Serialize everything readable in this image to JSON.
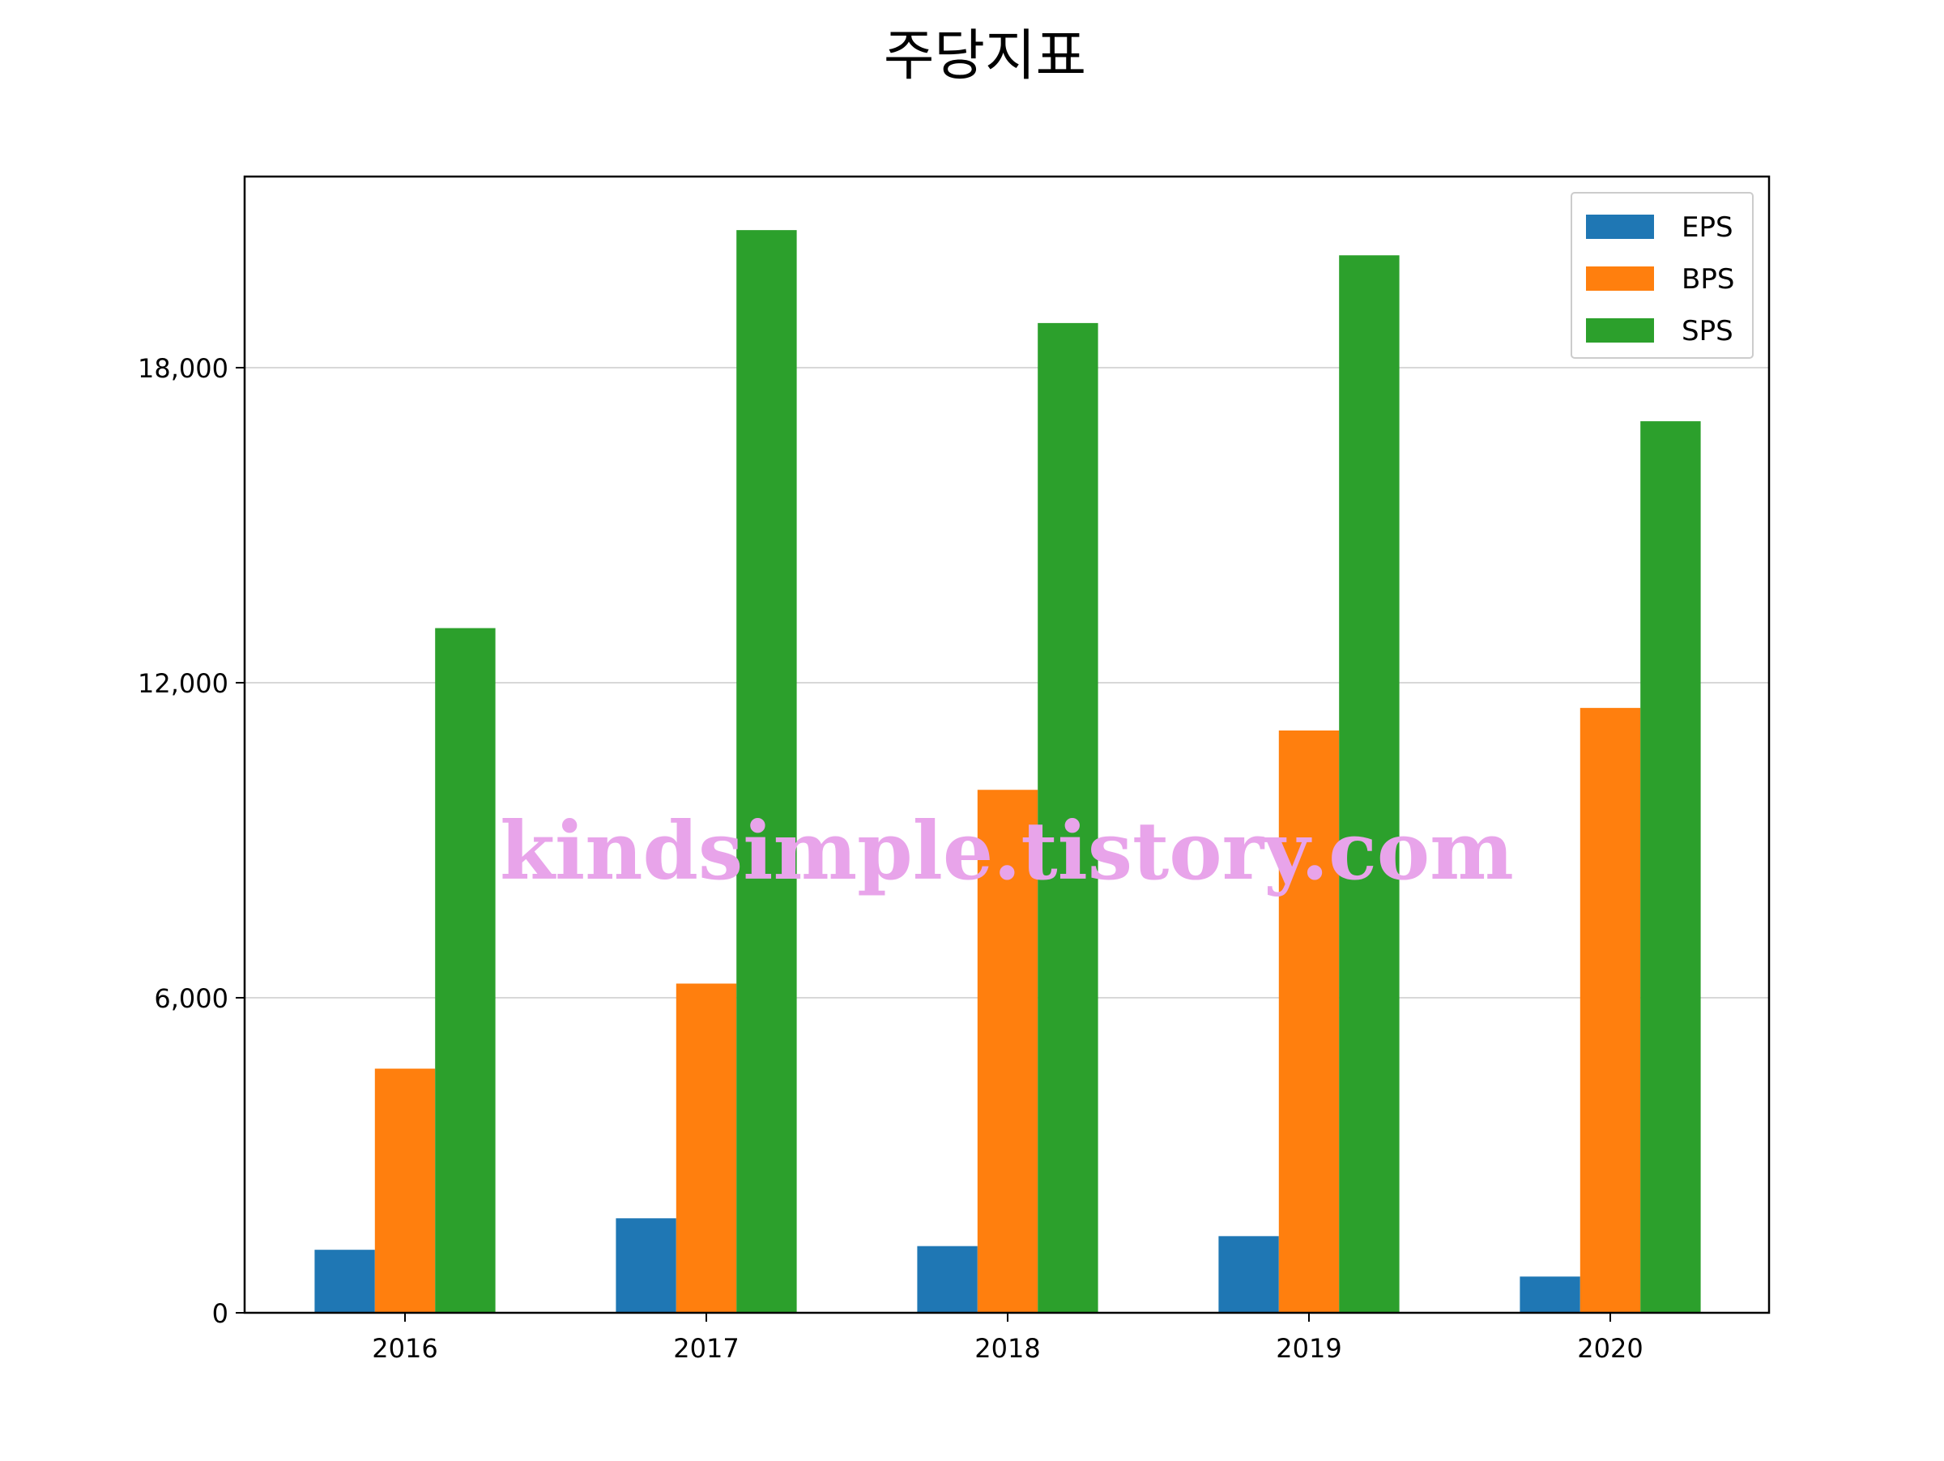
{
  "chart_data": {
    "type": "bar",
    "title": "주당지표",
    "xlabel": "",
    "ylabel": "",
    "categories": [
      "2016",
      "2017",
      "2018",
      "2019",
      "2020"
    ],
    "series": [
      {
        "name": "EPS",
        "color": "#1f77b4",
        "values": [
          1200,
          1800,
          1270,
          1460,
          690
        ]
      },
      {
        "name": "BPS",
        "color": "#ff7f0e",
        "values": [
          4650,
          6270,
          9960,
          11090,
          11520
        ]
      },
      {
        "name": "SPS",
        "color": "#2ca02c",
        "values": [
          13040,
          20620,
          18850,
          20140,
          16980
        ]
      }
    ],
    "ylim": [
      0,
      21640
    ],
    "yticks": [
      0,
      6000,
      12000,
      18000
    ],
    "ytick_labels": [
      "0",
      "6,000",
      "12,000",
      "18,000"
    ],
    "grid": "horizontal",
    "legend_position": "top-right"
  },
  "watermark": "kindsimple.tistory.com"
}
